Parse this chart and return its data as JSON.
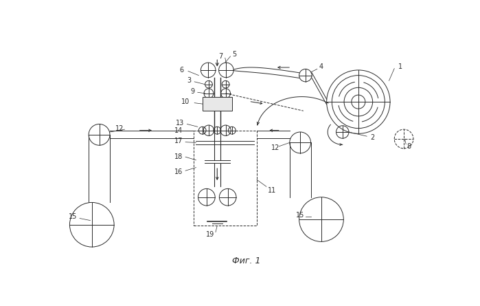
{
  "title": "Фиг. 1",
  "bg_color": "#ffffff",
  "line_color": "#2a2a2a",
  "fig_width": 6.99,
  "fig_height": 4.45,
  "dpi": 100
}
